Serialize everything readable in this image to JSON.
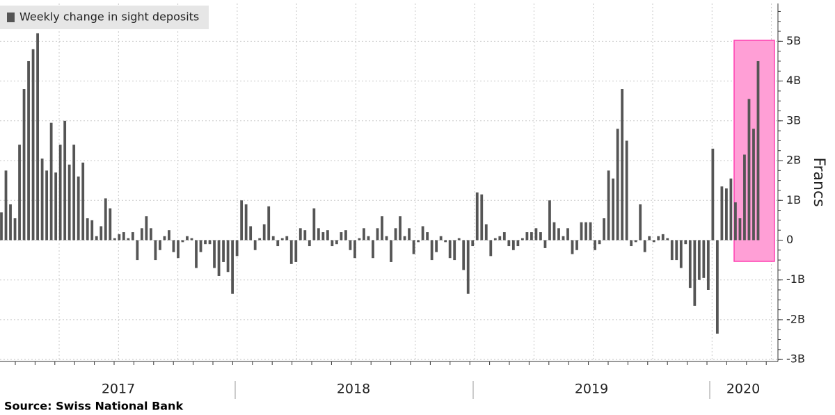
{
  "chart_data": {
    "type": "bar",
    "series": [
      {
        "name": "Weekly change in sight deposits",
        "color": "#555555",
        "values": [
          0.7,
          1.75,
          0.9,
          0.55,
          2.4,
          3.8,
          4.5,
          4.8,
          5.2,
          2.05,
          1.75,
          2.95,
          1.7,
          2.4,
          3.0,
          1.9,
          2.4,
          1.6,
          1.95,
          0.55,
          0.5,
          0.1,
          0.35,
          1.05,
          0.8,
          0.05,
          0.15,
          0.2,
          0.05,
          0.2,
          -0.5,
          0.3,
          0.6,
          0.3,
          -0.5,
          -0.25,
          0.1,
          0.25,
          -0.3,
          -0.45,
          -0.05,
          0.1,
          0.05,
          -0.7,
          -0.3,
          -0.1,
          -0.1,
          -0.7,
          -0.9,
          -0.55,
          -0.8,
          -1.35,
          -0.4,
          1.0,
          0.9,
          0.35,
          -0.25,
          0.05,
          0.4,
          0.85,
          0.1,
          -0.15,
          0.05,
          0.1,
          -0.6,
          -0.55,
          0.3,
          0.25,
          -0.15,
          0.8,
          0.3,
          0.2,
          0.25,
          -0.15,
          -0.1,
          0.2,
          0.25,
          -0.25,
          -0.45,
          0.05,
          0.3,
          0.1,
          -0.45,
          0.3,
          0.6,
          0.1,
          -0.55,
          0.3,
          0.6,
          0.1,
          0.3,
          -0.35,
          -0.05,
          0.35,
          0.2,
          -0.5,
          -0.3,
          0.1,
          -0.05,
          -0.45,
          -0.5,
          0.05,
          -0.75,
          -1.35,
          -0.15,
          1.2,
          1.15,
          0.4,
          -0.4,
          0.05,
          0.1,
          0.2,
          -0.15,
          -0.25,
          -0.15,
          0.05,
          0.2,
          0.2,
          0.3,
          0.2,
          -0.2,
          1.0,
          0.45,
          0.3,
          0.1,
          0.3,
          -0.35,
          -0.25,
          0.45,
          0.45,
          0.45,
          -0.25,
          -0.1,
          0.55,
          1.75,
          1.55,
          2.8,
          3.8,
          2.5,
          -0.15,
          -0.05,
          0.9,
          -0.3,
          0.1,
          -0.05,
          0.1,
          0.15,
          0.05,
          -0.5,
          -0.5,
          -0.7,
          -0.1,
          -1.2,
          -1.65,
          -1.0,
          -0.95,
          -1.25,
          2.3,
          -2.35,
          1.35,
          1.3,
          1.55,
          0.95,
          0.55,
          2.15,
          3.55,
          2.8,
          4.5
        ]
      }
    ],
    "x_labels": [
      "2017",
      "2018",
      "2019",
      "2020"
    ],
    "ylabel": "Francs",
    "ylim": [
      -3.05,
      5.95
    ],
    "yticks": [
      {
        "value": -3,
        "label": "-3B"
      },
      {
        "value": -2,
        "label": "-2B"
      },
      {
        "value": -1,
        "label": "-1B"
      },
      0,
      {
        "value": 1,
        "label": "1B"
      },
      {
        "value": 2,
        "label": "2B"
      },
      {
        "value": 3,
        "label": "3B"
      },
      {
        "value": 4,
        "label": "4B"
      },
      {
        "value": 5,
        "label": "5B"
      }
    ],
    "grid": true,
    "source": "Source: Swiss National Bank"
  }
}
